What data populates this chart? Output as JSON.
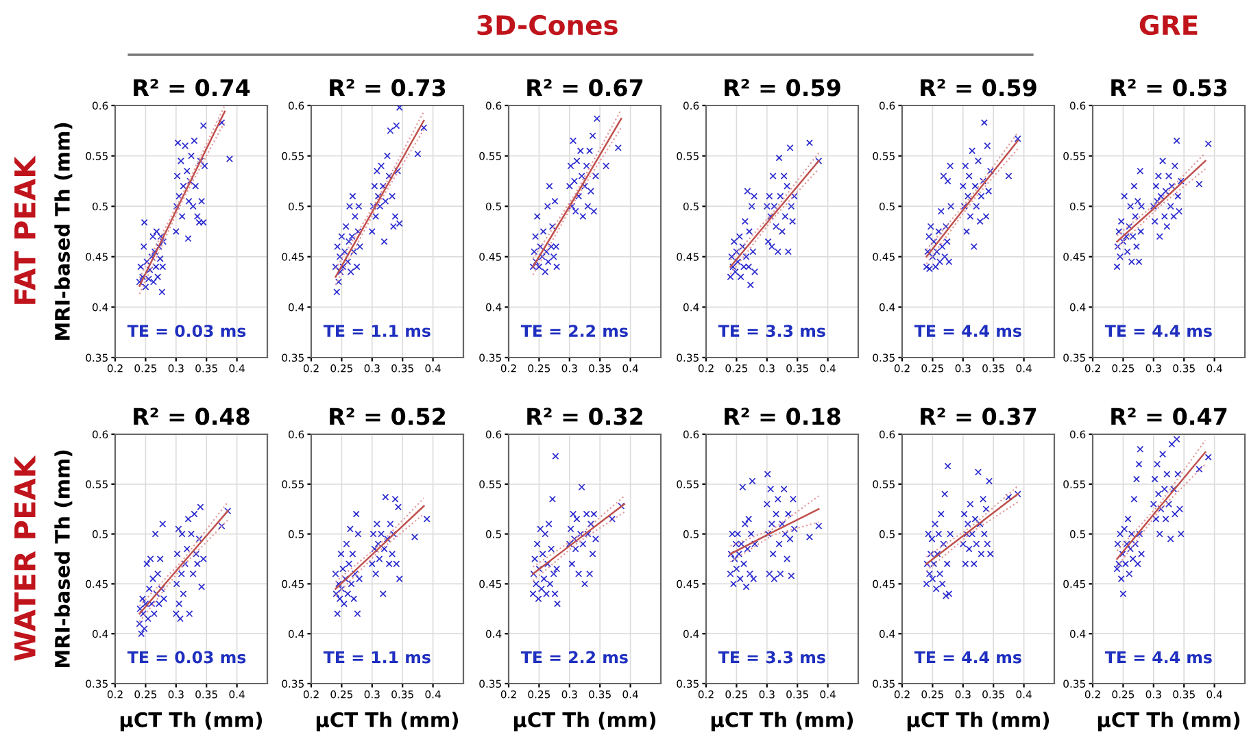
{
  "chart_data": [
    {
      "type": "scatter",
      "title": "R² = 0.74",
      "subtitle": "TE = 0.03 ms",
      "ylabel": "MRI-based Th (mm)",
      "annotations": [
        "FAT PEAK"
      ],
      "xlim": [
        0.2,
        0.45
      ],
      "ylim": [
        0.35,
        0.6
      ],
      "xticks": [
        0.2,
        0.25,
        0.3,
        0.35,
        0.4
      ],
      "yticks": [
        0.35,
        0.4,
        0.45,
        0.5,
        0.55,
        0.6
      ],
      "grid": true,
      "marker": "cross",
      "series": [
        {
          "type": "scatter",
          "color": "#2a2ad0",
          "x": [
            0.24,
            0.242,
            0.245,
            0.247,
            0.248,
            0.25,
            0.252,
            0.255,
            0.257,
            0.26,
            0.262,
            0.263,
            0.265,
            0.267,
            0.268,
            0.27,
            0.272,
            0.274,
            0.275,
            0.277,
            0.278,
            0.279,
            0.3,
            0.301,
            0.302,
            0.303,
            0.305,
            0.308,
            0.31,
            0.312,
            0.315,
            0.318,
            0.32,
            0.321,
            0.323,
            0.325,
            0.328,
            0.33,
            0.332,
            0.335,
            0.338,
            0.34,
            0.342,
            0.345,
            0.345,
            0.347,
            0.375,
            0.388
          ],
          "values": [
            0.425,
            0.44,
            0.43,
            0.46,
            0.484,
            0.42,
            0.445,
            0.428,
            0.437,
            0.45,
            0.47,
            0.425,
            0.455,
            0.44,
            0.475,
            0.43,
            0.46,
            0.448,
            0.47,
            0.415,
            0.44,
            0.465,
            0.475,
            0.5,
            0.53,
            0.563,
            0.51,
            0.545,
            0.49,
            0.52,
            0.56,
            0.535,
            0.468,
            0.505,
            0.525,
            0.55,
            0.5,
            0.565,
            0.52,
            0.49,
            0.484,
            0.545,
            0.505,
            0.484,
            0.58,
            0.54,
            0.583,
            0.547
          ]
        },
        {
          "type": "line",
          "color": "#c0504d",
          "marker": "none",
          "x": [
            0.24,
            0.31,
            0.38
          ],
          "values": [
            0.421,
            0.508,
            0.594
          ]
        },
        {
          "type": "line",
          "color": "#e39a9a",
          "marker": "none",
          "line_style": "dotted",
          "x": [
            0.24,
            0.31,
            0.38
          ],
          "values": [
            0.413,
            0.505,
            0.584
          ]
        },
        {
          "type": "line",
          "color": "#e39a9a",
          "marker": "none",
          "line_style": "dotted",
          "x": [
            0.24,
            0.31,
            0.38
          ],
          "values": [
            0.429,
            0.511,
            0.6
          ]
        }
      ]
    },
    {
      "type": "scatter",
      "title": "R² = 0.73",
      "subtitle": "TE = 1.1 ms",
      "xlim": [
        0.2,
        0.45
      ],
      "ylim": [
        0.35,
        0.6
      ],
      "xticks": [
        0.2,
        0.25,
        0.3,
        0.35,
        0.4
      ],
      "yticks": [
        0.35,
        0.4,
        0.45,
        0.5,
        0.55,
        0.6
      ],
      "grid": true,
      "marker": "cross",
      "series": [
        {
          "type": "scatter",
          "color": "#2a2ad0",
          "x": [
            0.24,
            0.242,
            0.243,
            0.245,
            0.247,
            0.248,
            0.25,
            0.252,
            0.255,
            0.257,
            0.26,
            0.262,
            0.263,
            0.265,
            0.267,
            0.268,
            0.27,
            0.272,
            0.275,
            0.277,
            0.278,
            0.28,
            0.3,
            0.302,
            0.304,
            0.306,
            0.308,
            0.31,
            0.313,
            0.315,
            0.318,
            0.32,
            0.322,
            0.325,
            0.328,
            0.33,
            0.333,
            0.335,
            0.338,
            0.34,
            0.342,
            0.345,
            0.345,
            0.375,
            0.385
          ],
          "values": [
            0.44,
            0.415,
            0.46,
            0.425,
            0.45,
            0.435,
            0.47,
            0.44,
            0.455,
            0.48,
            0.445,
            0.465,
            0.5,
            0.435,
            0.47,
            0.51,
            0.455,
            0.49,
            0.44,
            0.475,
            0.5,
            0.46,
            0.475,
            0.5,
            0.52,
            0.49,
            0.535,
            0.51,
            0.5,
            0.54,
            0.52,
            0.465,
            0.505,
            0.55,
            0.53,
            0.575,
            0.51,
            0.48,
            0.49,
            0.58,
            0.535,
            0.598,
            0.483,
            0.552,
            0.578
          ]
        },
        {
          "type": "line",
          "color": "#c0504d",
          "marker": "none",
          "x": [
            0.24,
            0.31,
            0.385
          ],
          "values": [
            0.43,
            0.505,
            0.585
          ]
        },
        {
          "type": "line",
          "color": "#e39a9a",
          "marker": "none",
          "line_style": "dotted",
          "x": [
            0.24,
            0.31,
            0.385
          ],
          "values": [
            0.422,
            0.502,
            0.576
          ]
        },
        {
          "type": "line",
          "color": "#e39a9a",
          "marker": "none",
          "line_style": "dotted",
          "x": [
            0.24,
            0.31,
            0.385
          ],
          "values": [
            0.438,
            0.508,
            0.594
          ]
        }
      ]
    },
    {
      "type": "scatter",
      "title": "R² = 0.67",
      "subtitle": "TE = 2.2 ms",
      "annotations": [
        "3D-Cones"
      ],
      "xlim": [
        0.2,
        0.45
      ],
      "ylim": [
        0.35,
        0.6
      ],
      "xticks": [
        0.2,
        0.25,
        0.3,
        0.35,
        0.4
      ],
      "yticks": [
        0.35,
        0.4,
        0.45,
        0.5,
        0.55,
        0.6
      ],
      "grid": true,
      "marker": "cross",
      "series": [
        {
          "type": "scatter",
          "color": "#2a2ad0",
          "x": [
            0.24,
            0.242,
            0.244,
            0.245,
            0.247,
            0.25,
            0.252,
            0.255,
            0.257,
            0.26,
            0.262,
            0.264,
            0.265,
            0.267,
            0.27,
            0.272,
            0.274,
            0.276,
            0.278,
            0.279,
            0.3,
            0.302,
            0.304,
            0.306,
            0.308,
            0.31,
            0.312,
            0.315,
            0.318,
            0.32,
            0.322,
            0.325,
            0.328,
            0.33,
            0.333,
            0.335,
            0.338,
            0.34,
            0.343,
            0.345,
            0.36,
            0.38
          ],
          "values": [
            0.44,
            0.455,
            0.47,
            0.445,
            0.49,
            0.44,
            0.46,
            0.45,
            0.475,
            0.435,
            0.455,
            0.5,
            0.445,
            0.52,
            0.46,
            0.48,
            0.45,
            0.505,
            0.46,
            0.44,
            0.52,
            0.54,
            0.5,
            0.565,
            0.525,
            0.495,
            0.545,
            0.51,
            0.555,
            0.53,
            0.49,
            0.52,
            0.54,
            0.5,
            0.555,
            0.515,
            0.57,
            0.495,
            0.53,
            0.587,
            0.54,
            0.558
          ]
        },
        {
          "type": "line",
          "color": "#c0504d",
          "marker": "none",
          "x": [
            0.24,
            0.31,
            0.385
          ],
          "values": [
            0.44,
            0.51,
            0.587
          ]
        },
        {
          "type": "line",
          "color": "#e39a9a",
          "marker": "none",
          "line_style": "dotted",
          "x": [
            0.24,
            0.31,
            0.385
          ],
          "values": [
            0.432,
            0.507,
            0.578
          ]
        },
        {
          "type": "line",
          "color": "#e39a9a",
          "marker": "none",
          "line_style": "dotted",
          "x": [
            0.24,
            0.31,
            0.385
          ],
          "values": [
            0.448,
            0.513,
            0.596
          ]
        }
      ]
    },
    {
      "type": "scatter",
      "title": "R² = 0.59",
      "subtitle": "TE = 3.3 ms",
      "xlim": [
        0.2,
        0.45
      ],
      "ylim": [
        0.35,
        0.6
      ],
      "xticks": [
        0.2,
        0.25,
        0.3,
        0.35,
        0.4
      ],
      "yticks": [
        0.35,
        0.4,
        0.45,
        0.5,
        0.55,
        0.6
      ],
      "grid": true,
      "marker": "cross",
      "series": [
        {
          "type": "scatter",
          "color": "#2a2ad0",
          "x": [
            0.24,
            0.242,
            0.244,
            0.246,
            0.248,
            0.25,
            0.252,
            0.255,
            0.257,
            0.26,
            0.262,
            0.264,
            0.266,
            0.268,
            0.27,
            0.271,
            0.273,
            0.275,
            0.277,
            0.279,
            0.28,
            0.3,
            0.302,
            0.304,
            0.306,
            0.308,
            0.31,
            0.312,
            0.315,
            0.318,
            0.32,
            0.322,
            0.325,
            0.328,
            0.33,
            0.333,
            0.335,
            0.338,
            0.34,
            0.342,
            0.345,
            0.37,
            0.385
          ],
          "values": [
            0.43,
            0.45,
            0.44,
            0.465,
            0.435,
            0.455,
            0.445,
            0.47,
            0.43,
            0.46,
            0.44,
            0.485,
            0.45,
            0.515,
            0.44,
            0.475,
            0.422,
            0.5,
            0.455,
            0.51,
            0.435,
            0.5,
            0.465,
            0.51,
            0.49,
            0.46,
            0.53,
            0.5,
            0.48,
            0.455,
            0.548,
            0.51,
            0.475,
            0.53,
            0.49,
            0.52,
            0.455,
            0.558,
            0.5,
            0.485,
            0.51,
            0.563,
            0.545
          ]
        },
        {
          "type": "line",
          "color": "#c0504d",
          "marker": "none",
          "x": [
            0.24,
            0.31,
            0.385
          ],
          "values": [
            0.44,
            0.491,
            0.545
          ]
        },
        {
          "type": "line",
          "color": "#e39a9a",
          "marker": "none",
          "line_style": "dotted",
          "x": [
            0.24,
            0.31,
            0.385
          ],
          "values": [
            0.433,
            0.488,
            0.537
          ]
        },
        {
          "type": "line",
          "color": "#e39a9a",
          "marker": "none",
          "line_style": "dotted",
          "x": [
            0.24,
            0.31,
            0.385
          ],
          "values": [
            0.447,
            0.494,
            0.553
          ]
        }
      ]
    },
    {
      "type": "scatter",
      "title": "R² = 0.59",
      "subtitle": "TE = 4.4 ms",
      "xlim": [
        0.2,
        0.45
      ],
      "ylim": [
        0.35,
        0.6
      ],
      "xticks": [
        0.2,
        0.25,
        0.3,
        0.35,
        0.4
      ],
      "yticks": [
        0.35,
        0.4,
        0.45,
        0.5,
        0.55,
        0.6
      ],
      "grid": true,
      "marker": "cross",
      "series": [
        {
          "type": "scatter",
          "color": "#2a2ad0",
          "x": [
            0.24,
            0.242,
            0.244,
            0.245,
            0.247,
            0.25,
            0.252,
            0.255,
            0.257,
            0.26,
            0.262,
            0.264,
            0.266,
            0.268,
            0.27,
            0.272,
            0.274,
            0.275,
            0.277,
            0.279,
            0.28,
            0.3,
            0.302,
            0.304,
            0.306,
            0.308,
            0.31,
            0.312,
            0.315,
            0.318,
            0.32,
            0.322,
            0.325,
            0.328,
            0.33,
            0.333,
            0.335,
            0.338,
            0.34,
            0.342,
            0.345,
            0.375,
            0.39
          ],
          "values": [
            0.44,
            0.455,
            0.47,
            0.438,
            0.48,
            0.45,
            0.465,
            0.44,
            0.455,
            0.475,
            0.445,
            0.495,
            0.46,
            0.53,
            0.45,
            0.48,
            0.465,
            0.525,
            0.445,
            0.54,
            0.5,
            0.52,
            0.5,
            0.54,
            0.475,
            0.51,
            0.53,
            0.49,
            0.555,
            0.46,
            0.52,
            0.5,
            0.545,
            0.485,
            0.51,
            0.525,
            0.583,
            0.49,
            0.56,
            0.515,
            0.535,
            0.53,
            0.567
          ]
        },
        {
          "type": "line",
          "color": "#c0504d",
          "marker": "none",
          "x": [
            0.24,
            0.315,
            0.39
          ],
          "values": [
            0.45,
            0.508,
            0.565
          ]
        },
        {
          "type": "line",
          "color": "#e39a9a",
          "marker": "none",
          "line_style": "dotted",
          "x": [
            0.24,
            0.315,
            0.39
          ],
          "values": [
            0.443,
            0.505,
            0.557
          ]
        },
        {
          "type": "line",
          "color": "#e39a9a",
          "marker": "none",
          "line_style": "dotted",
          "x": [
            0.24,
            0.315,
            0.39
          ],
          "values": [
            0.457,
            0.511,
            0.573
          ]
        }
      ]
    },
    {
      "type": "scatter",
      "title": "R² = 0.53",
      "subtitle": "TE = 4.4 ms",
      "annotations": [
        "GRE"
      ],
      "xlim": [
        0.2,
        0.45
      ],
      "ylim": [
        0.35,
        0.6
      ],
      "xticks": [
        0.2,
        0.25,
        0.3,
        0.35,
        0.4
      ],
      "yticks": [
        0.35,
        0.4,
        0.45,
        0.5,
        0.55,
        0.6
      ],
      "grid": true,
      "marker": "cross",
      "series": [
        {
          "type": "scatter",
          "color": "#2a2ad0",
          "x": [
            0.24,
            0.241,
            0.243,
            0.245,
            0.247,
            0.25,
            0.252,
            0.255,
            0.257,
            0.26,
            0.262,
            0.264,
            0.266,
            0.268,
            0.27,
            0.272,
            0.274,
            0.276,
            0.278,
            0.279,
            0.28,
            0.3,
            0.302,
            0.304,
            0.306,
            0.308,
            0.31,
            0.312,
            0.315,
            0.318,
            0.32,
            0.322,
            0.325,
            0.328,
            0.33,
            0.333,
            0.335,
            0.338,
            0.34,
            0.342,
            0.345,
            0.375,
            0.39
          ],
          "values": [
            0.44,
            0.46,
            0.475,
            0.45,
            0.485,
            0.465,
            0.51,
            0.47,
            0.455,
            0.48,
            0.5,
            0.445,
            0.47,
            0.52,
            0.49,
            0.46,
            0.505,
            0.445,
            0.535,
            0.475,
            0.5,
            0.5,
            0.485,
            0.52,
            0.505,
            0.53,
            0.47,
            0.51,
            0.545,
            0.49,
            0.515,
            0.48,
            0.53,
            0.5,
            0.52,
            0.49,
            0.54,
            0.565,
            0.51,
            0.495,
            0.525,
            0.522,
            0.562
          ]
        },
        {
          "type": "line",
          "color": "#c0504d",
          "marker": "none",
          "x": [
            0.24,
            0.31,
            0.385
          ],
          "values": [
            0.465,
            0.503,
            0.545
          ]
        },
        {
          "type": "line",
          "color": "#e39a9a",
          "marker": "none",
          "line_style": "dotted",
          "x": [
            0.24,
            0.31,
            0.385
          ],
          "values": [
            0.459,
            0.5,
            0.537
          ]
        },
        {
          "type": "line",
          "color": "#e39a9a",
          "marker": "none",
          "line_style": "dotted",
          "x": [
            0.24,
            0.31,
            0.385
          ],
          "values": [
            0.471,
            0.506,
            0.553
          ]
        }
      ]
    },
    {
      "type": "scatter",
      "title": "R² = 0.48",
      "subtitle": "TE = 0.03 ms",
      "xlabel": "µCT Th (mm)",
      "ylabel": "MRI-based Th (mm)",
      "annotations": [
        "WATER PEAK"
      ],
      "xlim": [
        0.2,
        0.45
      ],
      "ylim": [
        0.35,
        0.6
      ],
      "xticks": [
        0.2,
        0.25,
        0.3,
        0.35,
        0.4
      ],
      "yticks": [
        0.35,
        0.4,
        0.45,
        0.5,
        0.55,
        0.6
      ],
      "grid": true,
      "marker": "cross",
      "series": [
        {
          "type": "scatter",
          "color": "#2a2ad0",
          "x": [
            0.24,
            0.241,
            0.243,
            0.245,
            0.246,
            0.248,
            0.25,
            0.252,
            0.254,
            0.256,
            0.258,
            0.26,
            0.262,
            0.264,
            0.266,
            0.268,
            0.27,
            0.272,
            0.274,
            0.276,
            0.278,
            0.28,
            0.3,
            0.301,
            0.302,
            0.304,
            0.305,
            0.307,
            0.309,
            0.31,
            0.312,
            0.315,
            0.318,
            0.32,
            0.322,
            0.325,
            0.328,
            0.33,
            0.333,
            0.335,
            0.338,
            0.34,
            0.342,
            0.345,
            0.375,
            0.385
          ],
          "values": [
            0.41,
            0.425,
            0.4,
            0.435,
            0.42,
            0.405,
            0.43,
            0.47,
            0.415,
            0.445,
            0.475,
            0.43,
            0.455,
            0.42,
            0.5,
            0.44,
            0.46,
            0.43,
            0.475,
            0.445,
            0.51,
            0.435,
            0.42,
            0.45,
            0.48,
            0.505,
            0.43,
            0.415,
            0.46,
            0.5,
            0.44,
            0.47,
            0.485,
            0.515,
            0.42,
            0.5,
            0.46,
            0.52,
            0.48,
            0.47,
            0.495,
            0.527,
            0.447,
            0.475,
            0.508,
            0.523
          ]
        },
        {
          "type": "line",
          "color": "#c0504d",
          "marker": "none",
          "x": [
            0.24,
            0.31,
            0.385
          ],
          "values": [
            0.42,
            0.47,
            0.523
          ]
        },
        {
          "type": "line",
          "color": "#e39a9a",
          "marker": "none",
          "line_style": "dotted",
          "x": [
            0.24,
            0.31,
            0.385
          ],
          "values": [
            0.412,
            0.467,
            0.514
          ]
        },
        {
          "type": "line",
          "color": "#e39a9a",
          "marker": "none",
          "line_style": "dotted",
          "x": [
            0.24,
            0.31,
            0.385
          ],
          "values": [
            0.428,
            0.473,
            0.532
          ]
        }
      ]
    },
    {
      "type": "scatter",
      "title": "R² = 0.52",
      "subtitle": "TE = 1.1 ms",
      "xlabel": "µCT Th (mm)",
      "xlim": [
        0.2,
        0.45
      ],
      "ylim": [
        0.35,
        0.6
      ],
      "xticks": [
        0.2,
        0.25,
        0.3,
        0.35,
        0.4
      ],
      "yticks": [
        0.35,
        0.4,
        0.45,
        0.5,
        0.55,
        0.6
      ],
      "grid": true,
      "marker": "cross",
      "series": [
        {
          "type": "scatter",
          "color": "#2a2ad0",
          "x": [
            0.24,
            0.241,
            0.243,
            0.245,
            0.247,
            0.249,
            0.25,
            0.252,
            0.254,
            0.256,
            0.258,
            0.26,
            0.262,
            0.264,
            0.266,
            0.268,
            0.27,
            0.272,
            0.274,
            0.276,
            0.277,
            0.279,
            0.3,
            0.302,
            0.304,
            0.306,
            0.308,
            0.31,
            0.312,
            0.315,
            0.318,
            0.32,
            0.322,
            0.325,
            0.328,
            0.33,
            0.333,
            0.335,
            0.338,
            0.34,
            0.343,
            0.345,
            0.37,
            0.39
          ],
          "values": [
            0.46,
            0.44,
            0.42,
            0.45,
            0.435,
            0.48,
            0.445,
            0.465,
            0.43,
            0.455,
            0.49,
            0.44,
            0.47,
            0.505,
            0.45,
            0.48,
            0.435,
            0.46,
            0.52,
            0.42,
            0.5,
            0.455,
            0.47,
            0.5,
            0.485,
            0.46,
            0.51,
            0.49,
            0.475,
            0.5,
            0.44,
            0.485,
            0.537,
            0.495,
            0.47,
            0.51,
            0.48,
            0.5,
            0.535,
            0.47,
            0.527,
            0.455,
            0.497,
            0.515
          ]
        },
        {
          "type": "line",
          "color": "#c0504d",
          "marker": "none",
          "x": [
            0.24,
            0.31,
            0.385
          ],
          "values": [
            0.445,
            0.485,
            0.528
          ]
        },
        {
          "type": "line",
          "color": "#e39a9a",
          "marker": "none",
          "line_style": "dotted",
          "x": [
            0.24,
            0.31,
            0.385
          ],
          "values": [
            0.438,
            0.482,
            0.52
          ]
        },
        {
          "type": "line",
          "color": "#e39a9a",
          "marker": "none",
          "line_style": "dotted",
          "x": [
            0.24,
            0.31,
            0.385
          ],
          "values": [
            0.452,
            0.488,
            0.536
          ]
        }
      ]
    },
    {
      "type": "scatter",
      "title": "R² = 0.32",
      "subtitle": "TE = 2.2 ms",
      "xlabel": "µCT Th (mm)",
      "xlim": [
        0.2,
        0.45
      ],
      "ylim": [
        0.35,
        0.6
      ],
      "xticks": [
        0.2,
        0.25,
        0.3,
        0.35,
        0.4
      ],
      "yticks": [
        0.35,
        0.4,
        0.45,
        0.5,
        0.55,
        0.6
      ],
      "grid": true,
      "marker": "cross",
      "series": [
        {
          "type": "scatter",
          "color": "#2a2ad0",
          "x": [
            0.24,
            0.241,
            0.243,
            0.245,
            0.247,
            0.249,
            0.25,
            0.252,
            0.254,
            0.256,
            0.258,
            0.26,
            0.262,
            0.264,
            0.266,
            0.268,
            0.27,
            0.272,
            0.274,
            0.276,
            0.277,
            0.279,
            0.28,
            0.3,
            0.302,
            0.304,
            0.306,
            0.308,
            0.31,
            0.312,
            0.315,
            0.318,
            0.32,
            0.322,
            0.325,
            0.328,
            0.33,
            0.333,
            0.335,
            0.338,
            0.34,
            0.343,
            0.37,
            0.385
          ],
          "values": [
            0.44,
            0.46,
            0.475,
            0.45,
            0.49,
            0.435,
            0.465,
            0.505,
            0.445,
            0.48,
            0.455,
            0.5,
            0.44,
            0.47,
            0.51,
            0.45,
            0.485,
            0.535,
            0.46,
            0.44,
            0.578,
            0.465,
            0.43,
            0.49,
            0.505,
            0.47,
            0.52,
            0.495,
            0.485,
            0.515,
            0.46,
            0.5,
            0.547,
            0.49,
            0.45,
            0.52,
            0.5,
            0.46,
            0.51,
            0.48,
            0.52,
            0.495,
            0.515,
            0.528
          ]
        },
        {
          "type": "line",
          "color": "#c0504d",
          "marker": "none",
          "x": [
            0.24,
            0.315,
            0.39
          ],
          "values": [
            0.46,
            0.495,
            0.53
          ]
        },
        {
          "type": "line",
          "color": "#e39a9a",
          "marker": "none",
          "line_style": "dotted",
          "x": [
            0.24,
            0.315,
            0.39
          ],
          "values": [
            0.453,
            0.492,
            0.522
          ]
        },
        {
          "type": "line",
          "color": "#e39a9a",
          "marker": "none",
          "line_style": "dotted",
          "x": [
            0.24,
            0.315,
            0.39
          ],
          "values": [
            0.467,
            0.498,
            0.538
          ]
        }
      ]
    },
    {
      "type": "scatter",
      "title": "R² = 0.18",
      "subtitle": "TE = 3.3 ms",
      "xlabel": "µCT Th (mm)",
      "xlim": [
        0.2,
        0.45
      ],
      "ylim": [
        0.35,
        0.6
      ],
      "xticks": [
        0.2,
        0.25,
        0.3,
        0.35,
        0.4
      ],
      "yticks": [
        0.35,
        0.4,
        0.45,
        0.5,
        0.55,
        0.6
      ],
      "grid": true,
      "marker": "cross",
      "series": [
        {
          "type": "scatter",
          "color": "#2a2ad0",
          "x": [
            0.24,
            0.241,
            0.243,
            0.245,
            0.247,
            0.249,
            0.25,
            0.252,
            0.254,
            0.256,
            0.258,
            0.26,
            0.262,
            0.264,
            0.266,
            0.268,
            0.27,
            0.272,
            0.274,
            0.276,
            0.278,
            0.28,
            0.3,
            0.301,
            0.302,
            0.304,
            0.306,
            0.308,
            0.31,
            0.312,
            0.315,
            0.318,
            0.32,
            0.322,
            0.325,
            0.328,
            0.33,
            0.333,
            0.335,
            0.338,
            0.34,
            0.343,
            0.345,
            0.37,
            0.385
          ],
          "values": [
            0.46,
            0.48,
            0.5,
            0.45,
            0.475,
            0.49,
            0.465,
            0.5,
            0.48,
            0.455,
            0.49,
            0.547,
            0.47,
            0.51,
            0.447,
            0.485,
            0.515,
            0.46,
            0.5,
            0.553,
            0.455,
            0.49,
            0.53,
            0.56,
            0.5,
            0.46,
            0.545,
            0.51,
            0.48,
            0.455,
            0.52,
            0.535,
            0.49,
            0.46,
            0.51,
            0.545,
            0.5,
            0.475,
            0.52,
            0.495,
            0.458,
            0.535,
            0.505,
            0.497,
            0.508
          ]
        },
        {
          "type": "line",
          "color": "#c0504d",
          "marker": "none",
          "x": [
            0.24,
            0.31,
            0.385
          ],
          "values": [
            0.48,
            0.502,
            0.525
          ]
        },
        {
          "type": "line",
          "color": "#e39a9a",
          "marker": "none",
          "line_style": "dotted",
          "x": [
            0.24,
            0.31,
            0.385
          ],
          "values": [
            0.472,
            0.499,
            0.512
          ]
        },
        {
          "type": "line",
          "color": "#e39a9a",
          "marker": "none",
          "line_style": "dotted",
          "x": [
            0.24,
            0.31,
            0.385
          ],
          "values": [
            0.488,
            0.505,
            0.538
          ]
        }
      ]
    },
    {
      "type": "scatter",
      "title": "R² = 0.37",
      "subtitle": "TE = 4.4 ms",
      "xlabel": "µCT Th (mm)",
      "xlim": [
        0.2,
        0.45
      ],
      "ylim": [
        0.35,
        0.6
      ],
      "xticks": [
        0.2,
        0.25,
        0.3,
        0.35,
        0.4
      ],
      "yticks": [
        0.35,
        0.4,
        0.45,
        0.5,
        0.55,
        0.6
      ],
      "grid": true,
      "marker": "cross",
      "series": [
        {
          "type": "scatter",
          "color": "#2a2ad0",
          "x": [
            0.24,
            0.241,
            0.243,
            0.245,
            0.247,
            0.249,
            0.25,
            0.252,
            0.254,
            0.256,
            0.258,
            0.26,
            0.262,
            0.264,
            0.266,
            0.268,
            0.27,
            0.272,
            0.274,
            0.275,
            0.277,
            0.279,
            0.3,
            0.302,
            0.304,
            0.306,
            0.308,
            0.31,
            0.312,
            0.315,
            0.318,
            0.32,
            0.322,
            0.325,
            0.328,
            0.33,
            0.333,
            0.335,
            0.338,
            0.34,
            0.343,
            0.345,
            0.375,
            0.39
          ],
          "values": [
            0.45,
            0.47,
            0.5,
            0.46,
            0.48,
            0.495,
            0.455,
            0.47,
            0.51,
            0.445,
            0.48,
            0.5,
            0.46,
            0.52,
            0.45,
            0.49,
            0.54,
            0.438,
            0.47,
            0.568,
            0.44,
            0.5,
            0.49,
            0.52,
            0.47,
            0.5,
            0.51,
            0.485,
            0.53,
            0.5,
            0.47,
            0.515,
            0.49,
            0.562,
            0.51,
            0.48,
            0.535,
            0.5,
            0.525,
            0.49,
            0.553,
            0.48,
            0.537,
            0.54
          ]
        },
        {
          "type": "line",
          "color": "#c0504d",
          "marker": "none",
          "x": [
            0.24,
            0.315,
            0.39
          ],
          "values": [
            0.47,
            0.505,
            0.54
          ]
        },
        {
          "type": "line",
          "color": "#e39a9a",
          "marker": "none",
          "line_style": "dotted",
          "x": [
            0.24,
            0.315,
            0.39
          ],
          "values": [
            0.463,
            0.502,
            0.532
          ]
        },
        {
          "type": "line",
          "color": "#e39a9a",
          "marker": "none",
          "line_style": "dotted",
          "x": [
            0.24,
            0.315,
            0.39
          ],
          "values": [
            0.477,
            0.508,
            0.548
          ]
        }
      ]
    },
    {
      "type": "scatter",
      "title": "R² = 0.47",
      "subtitle": "TE = 4.4 ms",
      "xlabel": "µCT Th (mm)",
      "xlim": [
        0.2,
        0.45
      ],
      "ylim": [
        0.35,
        0.6
      ],
      "xticks": [
        0.2,
        0.25,
        0.3,
        0.35,
        0.4
      ],
      "yticks": [
        0.35,
        0.4,
        0.45,
        0.5,
        0.55,
        0.6
      ],
      "grid": true,
      "marker": "cross",
      "series": [
        {
          "type": "scatter",
          "color": "#2a2ad0",
          "x": [
            0.24,
            0.241,
            0.243,
            0.245,
            0.247,
            0.249,
            0.25,
            0.252,
            0.254,
            0.256,
            0.258,
            0.26,
            0.262,
            0.264,
            0.266,
            0.268,
            0.27,
            0.272,
            0.274,
            0.276,
            0.277,
            0.278,
            0.28,
            0.3,
            0.302,
            0.304,
            0.306,
            0.308,
            0.31,
            0.312,
            0.315,
            0.318,
            0.32,
            0.322,
            0.325,
            0.328,
            0.33,
            0.333,
            0.335,
            0.338,
            0.34,
            0.343,
            0.345,
            0.375,
            0.39
          ],
          "values": [
            0.465,
            0.49,
            0.47,
            0.5,
            0.455,
            0.48,
            0.44,
            0.505,
            0.47,
            0.49,
            0.515,
            0.46,
            0.485,
            0.5,
            0.475,
            0.535,
            0.49,
            0.555,
            0.47,
            0.57,
            0.5,
            0.585,
            0.48,
            0.53,
            0.555,
            0.515,
            0.57,
            0.54,
            0.5,
            0.525,
            0.58,
            0.545,
            0.515,
            0.56,
            0.53,
            0.495,
            0.59,
            0.545,
            0.52,
            0.595,
            0.56,
            0.525,
            0.5,
            0.565,
            0.577
          ]
        },
        {
          "type": "line",
          "color": "#c0504d",
          "marker": "none",
          "x": [
            0.24,
            0.31,
            0.385
          ],
          "values": [
            0.475,
            0.527,
            0.582
          ]
        },
        {
          "type": "line",
          "color": "#e39a9a",
          "marker": "none",
          "line_style": "dotted",
          "x": [
            0.24,
            0.31,
            0.385
          ],
          "values": [
            0.467,
            0.524,
            0.57
          ]
        },
        {
          "type": "line",
          "color": "#e39a9a",
          "marker": "none",
          "line_style": "dotted",
          "x": [
            0.24,
            0.31,
            0.385
          ],
          "values": [
            0.483,
            0.53,
            0.594
          ]
        }
      ]
    }
  ]
}
